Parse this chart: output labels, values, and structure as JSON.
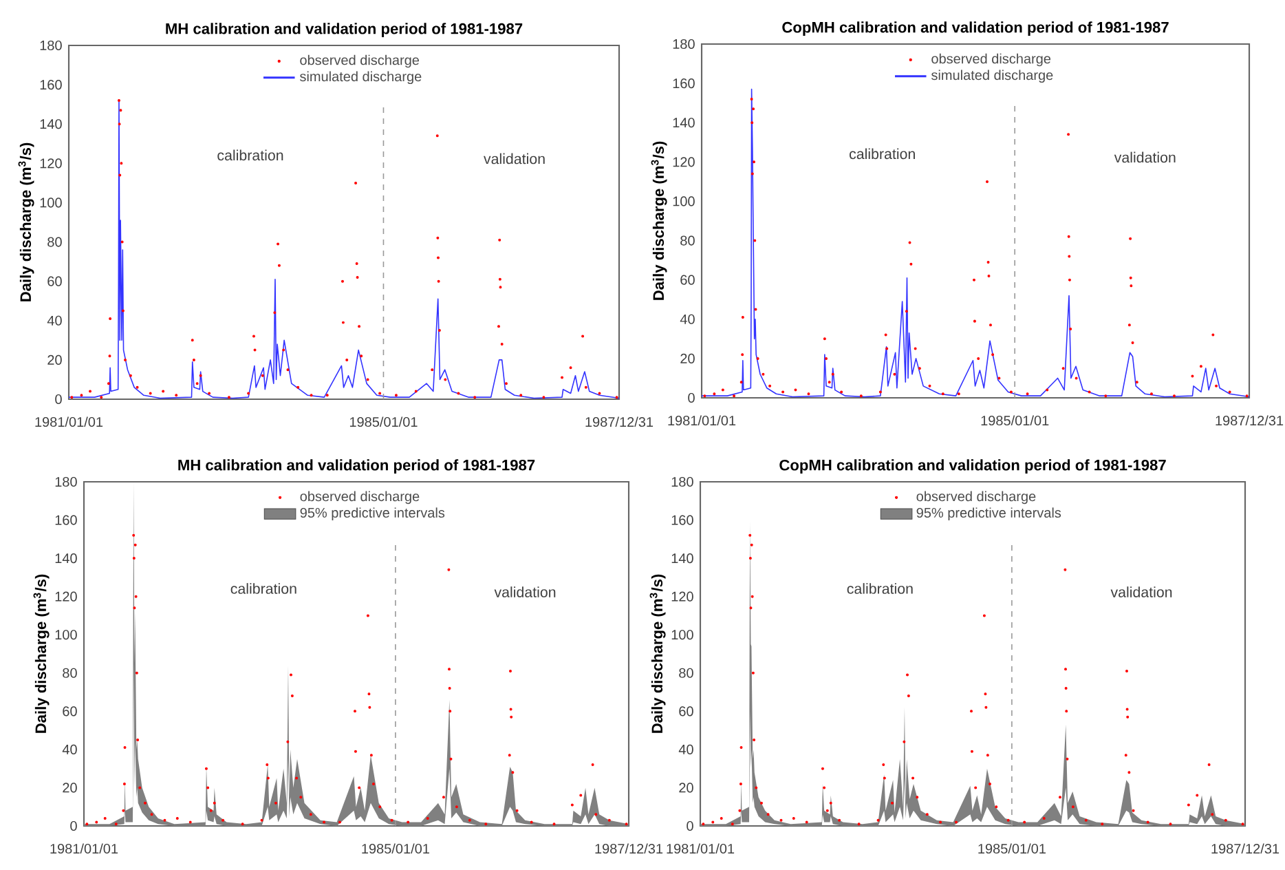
{
  "chart_data": [
    {
      "type": "line",
      "title": "MH calibration and validation period of 1981-1987",
      "ylabel": "Daily discharge (m$^{3}$/s)",
      "xlim": [
        "1981-01-01",
        "1987-12-31"
      ],
      "ylim": [
        0,
        180
      ],
      "xticks": [
        {
          "value": "1981-01-01",
          "label": "1981/01/01"
        },
        {
          "value": "1985-01-01",
          "label": "1985/01/01"
        },
        {
          "value": "1987-12-31",
          "label": "1987/12/31"
        }
      ],
      "yticks": [
        0,
        20,
        40,
        60,
        80,
        100,
        120,
        140,
        160,
        180
      ],
      "legend": "top",
      "ref_lines": [
        {
          "axis": "x",
          "value": "1985-01-01",
          "color": "#999999",
          "line_style": "dashed"
        }
      ],
      "annotations": [
        "calibration",
        "validation"
      ],
      "series": [
        {
          "name": "observed discharge",
          "type": "scatter",
          "color": "#ff0000",
          "x": [
            "1981-01-15",
            "1981-03-01",
            "1981-04-10",
            "1981-06-01",
            "1981-07-05",
            "1981-07-10",
            "1981-07-12",
            "1981-08-22",
            "1981-08-24",
            "1981-08-26",
            "1981-08-30",
            "1981-09-02",
            "1981-09-06",
            "1981-09-10",
            "1981-09-20",
            "1981-10-15",
            "1981-11-15",
            "1982-01-15",
            "1982-03-15",
            "1982-05-15",
            "1982-07-29",
            "1982-08-05",
            "1982-08-20",
            "1982-09-05",
            "1982-10-15",
            "1983-01-15",
            "1983-04-15",
            "1983-05-10",
            "1983-05-15",
            "1983-06-20",
            "1983-08-15",
            "1983-08-30",
            "1983-09-05",
            "1983-09-25",
            "1983-10-15",
            "1983-12-01",
            "1984-02-01",
            "1984-04-15",
            "1984-06-25",
            "1984-06-28",
            "1984-07-15",
            "1984-08-25",
            "1984-08-30",
            "1984-09-02",
            "1984-09-10",
            "1984-09-20",
            "1984-10-20",
            "1984-12-15",
            "1985-03-01",
            "1985-06-01",
            "1985-08-15",
            "1985-09-08",
            "1985-09-10",
            "1985-09-12",
            "1985-09-14",
            "1985-09-18",
            "1985-10-15",
            "1985-12-15",
            "1986-03-01",
            "1986-06-20",
            "1986-06-24",
            "1986-06-26",
            "1986-06-28",
            "1986-07-05",
            "1986-07-25",
            "1986-10-01",
            "1987-01-15",
            "1987-04-10",
            "1987-05-20",
            "1987-07-15",
            "1987-07-30",
            "1987-10-01",
            "1987-12-20"
          ],
          "values": [
            1,
            2,
            4,
            1,
            8,
            22,
            41,
            152,
            140,
            114,
            147,
            120,
            80,
            45,
            20,
            12,
            6,
            3,
            4,
            2,
            30,
            20,
            8,
            12,
            3,
            1,
            3,
            32,
            25,
            12,
            44,
            79,
            68,
            25,
            15,
            6,
            2,
            2,
            60,
            39,
            20,
            110,
            69,
            62,
            37,
            22,
            10,
            3,
            2,
            4,
            15,
            134,
            82,
            72,
            60,
            35,
            10,
            3,
            1,
            37,
            81,
            61,
            57,
            28,
            8,
            2,
            1,
            11,
            16,
            32,
            6,
            3,
            1
          ]
        },
        {
          "name": "simulated discharge",
          "color": "#3333ff",
          "x": [
            "1981-01-01",
            "1981-05-01",
            "1981-07-09",
            "1981-07-12",
            "1981-07-15",
            "1981-08-18",
            "1981-08-20",
            "1981-08-22",
            "1981-08-26",
            "1981-08-29",
            "1981-09-04",
            "1981-09-08",
            "1981-09-12",
            "1981-10-01",
            "1981-11-01",
            "1981-12-15",
            "1982-03-01",
            "1982-07-25",
            "1982-07-29",
            "1982-08-05",
            "1982-09-01",
            "1982-09-05",
            "1982-09-15",
            "1982-11-01",
            "1983-02-01",
            "1983-04-15",
            "1983-05-13",
            "1983-05-20",
            "1983-06-24",
            "1983-07-01",
            "1983-07-26",
            "1983-08-10",
            "1983-08-17",
            "1983-08-22",
            "1983-08-27",
            "1983-09-10",
            "1983-09-28",
            "1983-11-01",
            "1984-01-15",
            "1984-04-01",
            "1984-06-20",
            "1984-06-30",
            "1984-07-22",
            "1984-08-10",
            "1984-09-07",
            "1984-10-15",
            "1984-12-01",
            "1985-02-01",
            "1985-05-01",
            "1985-07-20",
            "1985-08-20",
            "1985-09-11",
            "1985-09-20",
            "1985-10-13",
            "1985-11-15",
            "1986-02-01",
            "1986-05-15",
            "1986-06-22",
            "1986-07-05",
            "1986-07-20",
            "1986-09-01",
            "1986-12-01",
            "1987-04-10",
            "1987-04-15",
            "1987-05-20",
            "1987-06-11",
            "1987-06-25",
            "1987-07-24",
            "1987-08-15",
            "1987-10-01",
            "1987-12-31"
          ],
          "values": [
            1,
            1,
            3,
            16,
            4,
            5,
            60,
            152,
            30,
            91,
            30,
            76,
            25,
            15,
            6,
            2,
            0.5,
            1,
            19,
            6,
            5,
            14,
            4,
            1,
            0.5,
            1,
            17,
            6,
            16,
            5,
            20,
            8,
            61,
            10,
            28,
            12,
            30,
            8,
            2,
            1,
            17,
            6,
            12,
            6,
            25,
            8,
            2,
            1,
            1,
            8,
            4,
            51,
            10,
            15,
            4,
            1,
            1,
            20,
            20,
            5,
            2,
            0.5,
            1,
            5,
            3,
            12,
            4,
            14,
            4,
            2,
            0.5
          ]
        }
      ]
    },
    {
      "type": "line",
      "title": "CopMH calibration and validation period of 1981-1987",
      "ylabel": "Daily discharge (m$^{3}$/s)",
      "xlim": [
        "1981-01-01",
        "1987-12-31"
      ],
      "ylim": [
        0,
        180
      ],
      "xticks": [
        {
          "value": "1981-01-01",
          "label": "1981/01/01"
        },
        {
          "value": "1985-01-01",
          "label": "1985/01/01"
        },
        {
          "value": "1987-12-31",
          "label": "1987/12/31"
        }
      ],
      "yticks": [
        0,
        20,
        40,
        60,
        80,
        100,
        120,
        140,
        160,
        180
      ],
      "legend": "top",
      "ref_lines": [
        {
          "axis": "x",
          "value": "1985-01-01",
          "color": "#999999",
          "line_style": "dashed"
        }
      ],
      "annotations": [
        "calibration",
        "validation"
      ],
      "series": [
        {
          "name": "observed discharge",
          "type": "scatter",
          "color": "#ff0000",
          "x": [
            "1981-01-15",
            "1981-03-01",
            "1981-04-10",
            "1981-06-01",
            "1981-07-05",
            "1981-07-10",
            "1981-07-12",
            "1981-08-22",
            "1981-08-24",
            "1981-08-26",
            "1981-08-30",
            "1981-09-02",
            "1981-09-06",
            "1981-09-10",
            "1981-09-20",
            "1981-10-15",
            "1981-11-15",
            "1982-01-15",
            "1982-03-15",
            "1982-05-15",
            "1982-07-29",
            "1982-08-05",
            "1982-08-20",
            "1982-09-05",
            "1982-10-15",
            "1983-01-15",
            "1983-04-15",
            "1983-05-10",
            "1983-05-15",
            "1983-06-20",
            "1983-08-15",
            "1983-08-30",
            "1983-09-05",
            "1983-09-25",
            "1983-10-15",
            "1983-12-01",
            "1984-02-01",
            "1984-04-15",
            "1984-06-25",
            "1984-06-28",
            "1984-07-15",
            "1984-08-25",
            "1984-08-30",
            "1984-09-02",
            "1984-09-10",
            "1984-09-20",
            "1984-10-20",
            "1984-12-15",
            "1985-03-01",
            "1985-06-01",
            "1985-08-15",
            "1985-09-08",
            "1985-09-10",
            "1985-09-12",
            "1985-09-14",
            "1985-09-18",
            "1985-10-15",
            "1985-12-15",
            "1986-03-01",
            "1986-06-20",
            "1986-06-24",
            "1986-06-26",
            "1986-06-28",
            "1986-07-05",
            "1986-07-25",
            "1986-10-01",
            "1987-01-15",
            "1987-04-10",
            "1987-05-20",
            "1987-07-15",
            "1987-07-30",
            "1987-10-01",
            "1987-12-20"
          ],
          "values": [
            1,
            2,
            4,
            1,
            8,
            22,
            41,
            152,
            140,
            114,
            147,
            120,
            80,
            45,
            20,
            12,
            6,
            3,
            4,
            2,
            30,
            20,
            8,
            12,
            3,
            1,
            3,
            32,
            25,
            12,
            44,
            79,
            68,
            25,
            15,
            6,
            2,
            2,
            60,
            39,
            20,
            110,
            69,
            62,
            37,
            22,
            10,
            3,
            2,
            4,
            15,
            134,
            82,
            72,
            60,
            35,
            10,
            3,
            1,
            37,
            81,
            61,
            57,
            28,
            8,
            2,
            1,
            11,
            16,
            32,
            6,
            3,
            1
          ]
        },
        {
          "name": "simulated discharge",
          "color": "#3333ff",
          "x": [
            "1981-01-01",
            "1981-05-01",
            "1981-07-09",
            "1981-07-12",
            "1981-07-15",
            "1981-08-18",
            "1981-08-20",
            "1981-08-22",
            "1981-08-26",
            "1981-08-29",
            "1981-09-04",
            "1981-09-08",
            "1981-09-12",
            "1981-10-01",
            "1981-11-01",
            "1981-12-15",
            "1982-03-01",
            "1982-07-25",
            "1982-07-29",
            "1982-08-05",
            "1982-09-01",
            "1982-09-05",
            "1982-09-15",
            "1982-11-01",
            "1983-02-01",
            "1983-04-15",
            "1983-05-13",
            "1983-05-20",
            "1983-06-24",
            "1983-07-01",
            "1983-07-26",
            "1983-08-10",
            "1983-08-17",
            "1983-08-22",
            "1983-08-27",
            "1983-09-10",
            "1983-09-28",
            "1983-11-01",
            "1984-01-15",
            "1984-04-01",
            "1984-06-20",
            "1984-06-30",
            "1984-07-22",
            "1984-08-10",
            "1984-09-07",
            "1984-10-15",
            "1984-12-01",
            "1985-02-01",
            "1985-05-01",
            "1985-07-20",
            "1985-08-20",
            "1985-09-11",
            "1985-09-20",
            "1985-10-13",
            "1985-11-15",
            "1986-02-01",
            "1986-05-15",
            "1986-06-22",
            "1986-07-05",
            "1986-07-20",
            "1986-09-01",
            "1986-12-01",
            "1987-04-10",
            "1987-04-15",
            "1987-05-20",
            "1987-06-11",
            "1987-06-25",
            "1987-07-24",
            "1987-08-15",
            "1987-10-01",
            "1987-12-31"
          ],
          "values": [
            1,
            1,
            3,
            19,
            4,
            5,
            50,
            157,
            126,
            92,
            30,
            40,
            22,
            12,
            5,
            2,
            0.5,
            1,
            22,
            6,
            5,
            15,
            4,
            1,
            0.5,
            1,
            26,
            6,
            23,
            5,
            49,
            8,
            61,
            10,
            33,
            12,
            20,
            6,
            2,
            1,
            19,
            6,
            14,
            5,
            29,
            9,
            3,
            1,
            1,
            10,
            4,
            52,
            10,
            16,
            4,
            1,
            1,
            23,
            21,
            6,
            2,
            0.5,
            1,
            6,
            3,
            15,
            4,
            15,
            5,
            2,
            0.5
          ]
        }
      ]
    },
    {
      "type": "line",
      "title": "MH calibration and validation period of 1981-1987",
      "ylabel": "Daily discharge (m$^{3}$/s)",
      "xlim": [
        "1981-01-01",
        "1987-12-31"
      ],
      "ylim": [
        0,
        180
      ],
      "xticks": [
        {
          "value": "1981-01-01",
          "label": "1981/01/01"
        },
        {
          "value": "1985-01-01",
          "label": "1985/01/01"
        },
        {
          "value": "1987-12-31",
          "label": "1987/12/31"
        }
      ],
      "yticks": [
        0,
        20,
        40,
        60,
        80,
        100,
        120,
        140,
        160,
        180
      ],
      "legend": "top",
      "ref_lines": [
        {
          "axis": "x",
          "value": "1985-01-01",
          "color": "#999999",
          "line_style": "dashed"
        }
      ],
      "annotations": [
        "calibration",
        "validation"
      ],
      "series": [
        {
          "name": "observed discharge",
          "type": "scatter",
          "color": "#ff0000",
          "x": [
            "1981-01-15",
            "1981-03-01",
            "1981-04-10",
            "1981-06-01",
            "1981-07-05",
            "1981-07-10",
            "1981-07-12",
            "1981-08-22",
            "1981-08-24",
            "1981-08-26",
            "1981-08-30",
            "1981-09-02",
            "1981-09-06",
            "1981-09-10",
            "1981-09-20",
            "1981-10-15",
            "1981-11-15",
            "1982-01-15",
            "1982-03-15",
            "1982-05-15",
            "1982-07-29",
            "1982-08-05",
            "1982-08-20",
            "1982-09-05",
            "1982-10-15",
            "1983-01-15",
            "1983-04-15",
            "1983-05-10",
            "1983-05-15",
            "1983-06-20",
            "1983-08-15",
            "1983-08-30",
            "1983-09-05",
            "1983-09-25",
            "1983-10-15",
            "1983-12-01",
            "1984-02-01",
            "1984-04-15",
            "1984-06-25",
            "1984-06-28",
            "1984-07-15",
            "1984-08-25",
            "1984-08-30",
            "1984-09-02",
            "1984-09-10",
            "1984-09-20",
            "1984-10-20",
            "1984-12-15",
            "1985-03-01",
            "1985-06-01",
            "1985-08-15",
            "1985-09-08",
            "1985-09-10",
            "1985-09-12",
            "1985-09-14",
            "1985-09-18",
            "1985-10-15",
            "1985-12-15",
            "1986-03-01",
            "1986-06-20",
            "1986-06-24",
            "1986-06-26",
            "1986-06-28",
            "1986-07-05",
            "1986-07-25",
            "1986-10-01",
            "1987-01-15",
            "1987-04-10",
            "1987-05-20",
            "1987-07-15",
            "1987-07-30",
            "1987-10-01",
            "1987-12-20"
          ],
          "values": [
            1,
            2,
            4,
            1,
            8,
            22,
            41,
            152,
            140,
            114,
            147,
            120,
            80,
            45,
            20,
            12,
            6,
            3,
            4,
            2,
            30,
            20,
            8,
            12,
            3,
            1,
            3,
            32,
            25,
            12,
            44,
            79,
            68,
            25,
            15,
            6,
            2,
            2,
            60,
            39,
            20,
            110,
            69,
            62,
            37,
            22,
            10,
            3,
            2,
            4,
            15,
            134,
            82,
            72,
            60,
            35,
            10,
            3,
            1,
            37,
            81,
            61,
            57,
            28,
            8,
            2,
            1,
            11,
            16,
            32,
            6,
            3,
            1
          ]
        },
        {
          "name": "95% predictive intervals",
          "color": "#808080",
          "x": [
            "1981-01-01",
            "1981-05-01",
            "1981-07-09",
            "1981-07-12",
            "1981-07-15",
            "1981-08-18",
            "1981-08-20",
            "1981-08-22",
            "1981-08-26",
            "1981-08-29",
            "1981-09-04",
            "1981-09-08",
            "1981-09-12",
            "1981-10-01",
            "1981-11-01",
            "1981-12-15",
            "1982-03-01",
            "1982-07-25",
            "1982-07-29",
            "1982-08-05",
            "1982-09-01",
            "1982-09-05",
            "1982-09-15",
            "1982-11-01",
            "1983-02-01",
            "1983-04-15",
            "1983-05-13",
            "1983-05-20",
            "1983-06-24",
            "1983-07-01",
            "1983-07-26",
            "1983-08-10",
            "1983-08-17",
            "1983-08-22",
            "1983-08-27",
            "1983-09-10",
            "1983-09-28",
            "1983-11-01",
            "1984-01-15",
            "1984-04-01",
            "1984-06-20",
            "1984-06-30",
            "1984-07-22",
            "1984-08-10",
            "1984-09-07",
            "1984-10-15",
            "1984-12-01",
            "1985-02-01",
            "1985-05-01",
            "1985-07-20",
            "1985-08-20",
            "1985-09-11",
            "1985-09-20",
            "1985-10-13",
            "1985-11-15",
            "1986-02-01",
            "1986-05-15",
            "1986-06-22",
            "1986-07-05",
            "1986-07-20",
            "1986-09-01",
            "1986-12-01",
            "1987-04-10",
            "1987-04-15",
            "1987-05-20",
            "1987-06-11",
            "1987-06-25",
            "1987-07-24",
            "1987-08-15",
            "1987-10-01",
            "1987-12-31"
          ],
          "values": [
            null,
            null,
            null,
            null,
            null,
            null,
            null,
            null,
            null,
            null,
            null,
            null,
            null,
            null,
            null,
            null,
            null,
            null,
            null,
            null,
            null,
            null,
            null,
            null,
            null,
            null,
            null,
            null,
            null,
            null,
            null,
            null,
            null,
            null,
            null,
            null,
            null,
            null,
            null,
            null,
            null,
            null,
            null,
            null,
            null,
            null,
            null,
            null,
            null,
            null,
            null,
            null,
            null,
            null,
            null,
            null,
            null,
            null,
            null,
            null,
            null,
            null,
            null,
            null,
            null,
            null,
            null,
            null,
            null,
            null,
            null
          ],
          "upper": [
            1,
            1,
            5,
            24,
            8,
            10,
            110,
            180,
            85,
            112,
            40,
            45,
            35,
            20,
            10,
            4,
            1,
            2,
            31,
            10,
            8,
            20,
            6,
            2,
            1,
            2,
            32,
            10,
            25,
            8,
            30,
            12,
            84,
            15,
            40,
            20,
            35,
            12,
            3,
            2,
            26,
            10,
            20,
            8,
            37,
            12,
            4,
            2,
            2,
            12,
            6,
            66,
            15,
            22,
            6,
            2,
            1,
            31,
            28,
            8,
            3,
            1,
            1,
            8,
            5,
            20,
            6,
            20,
            6,
            3,
            1
          ],
          "lower": [
            0,
            0,
            1,
            8,
            2,
            2,
            30,
            85,
            20,
            45,
            15,
            20,
            12,
            7,
            3,
            1,
            0,
            0,
            8,
            3,
            2,
            5,
            1,
            0,
            0,
            0,
            10,
            3,
            6,
            2,
            8,
            4,
            35,
            5,
            15,
            6,
            12,
            4,
            1,
            0,
            8,
            3,
            5,
            2,
            12,
            4,
            1,
            0,
            0,
            3,
            1,
            30,
            4,
            7,
            2,
            0,
            0,
            10,
            8,
            2,
            1,
            0,
            0,
            2,
            1,
            6,
            1,
            6,
            1,
            0,
            0
          ]
        }
      ]
    },
    {
      "type": "line",
      "title": "CopMH calibration and validation period of 1981-1987",
      "ylabel": "Daily discharge (m$^{3}$/s)",
      "xlim": [
        "1981-01-01",
        "1987-12-31"
      ],
      "ylim": [
        0,
        180
      ],
      "xticks": [
        {
          "value": "1981-01-01",
          "label": "1981/01/01"
        },
        {
          "value": "1985-01-01",
          "label": "1985/01/01"
        },
        {
          "value": "1987-12-31",
          "label": "1987/12/31"
        }
      ],
      "yticks": [
        0,
        20,
        40,
        60,
        80,
        100,
        120,
        140,
        160,
        180
      ],
      "legend": "top",
      "ref_lines": [
        {
          "axis": "x",
          "value": "1985-01-01",
          "color": "#999999",
          "line_style": "dashed"
        }
      ],
      "annotations": [
        "calibration",
        "validation"
      ],
      "series": [
        {
          "name": "observed discharge",
          "type": "scatter",
          "color": "#ff0000",
          "x": [
            "1981-01-15",
            "1981-03-01",
            "1981-04-10",
            "1981-06-01",
            "1981-07-05",
            "1981-07-10",
            "1981-07-12",
            "1981-08-22",
            "1981-08-24",
            "1981-08-26",
            "1981-08-30",
            "1981-09-02",
            "1981-09-06",
            "1981-09-10",
            "1981-09-20",
            "1981-10-15",
            "1981-11-15",
            "1982-01-15",
            "1982-03-15",
            "1982-05-15",
            "1982-07-29",
            "1982-08-05",
            "1982-08-20",
            "1982-09-05",
            "1982-10-15",
            "1983-01-15",
            "1983-04-15",
            "1983-05-10",
            "1983-05-15",
            "1983-06-20",
            "1983-08-15",
            "1983-08-30",
            "1983-09-05",
            "1983-09-25",
            "1983-10-15",
            "1983-12-01",
            "1984-02-01",
            "1984-04-15",
            "1984-06-25",
            "1984-06-28",
            "1984-07-15",
            "1984-08-25",
            "1984-08-30",
            "1984-09-02",
            "1984-09-10",
            "1984-09-20",
            "1984-10-20",
            "1984-12-15",
            "1985-03-01",
            "1985-06-01",
            "1985-08-15",
            "1985-09-08",
            "1985-09-10",
            "1985-09-12",
            "1985-09-14",
            "1985-09-18",
            "1985-10-15",
            "1985-12-15",
            "1986-03-01",
            "1986-06-20",
            "1986-06-24",
            "1986-06-26",
            "1986-06-28",
            "1986-07-05",
            "1986-07-25",
            "1986-10-01",
            "1987-01-15",
            "1987-04-10",
            "1987-05-20",
            "1987-07-15",
            "1987-07-30",
            "1987-10-01",
            "1987-12-20"
          ],
          "values": [
            1,
            2,
            4,
            1,
            8,
            22,
            41,
            152,
            140,
            114,
            147,
            120,
            80,
            45,
            20,
            12,
            6,
            3,
            4,
            2,
            30,
            20,
            8,
            12,
            3,
            1,
            3,
            32,
            25,
            12,
            44,
            79,
            68,
            25,
            15,
            6,
            2,
            2,
            60,
            39,
            20,
            110,
            69,
            62,
            37,
            22,
            10,
            3,
            2,
            4,
            15,
            134,
            82,
            72,
            60,
            35,
            10,
            3,
            1,
            37,
            81,
            61,
            57,
            28,
            8,
            2,
            1,
            11,
            16,
            32,
            6,
            3,
            1
          ]
        },
        {
          "name": "95% predictive intervals",
          "color": "#808080",
          "x": [
            "1981-01-01",
            "1981-05-01",
            "1981-07-09",
            "1981-07-12",
            "1981-07-15",
            "1981-08-18",
            "1981-08-20",
            "1981-08-22",
            "1981-08-26",
            "1981-08-29",
            "1981-09-04",
            "1981-09-08",
            "1981-09-12",
            "1981-10-01",
            "1981-11-01",
            "1981-12-15",
            "1982-03-01",
            "1982-07-25",
            "1982-07-29",
            "1982-08-05",
            "1982-09-01",
            "1982-09-05",
            "1982-09-15",
            "1982-11-01",
            "1983-02-01",
            "1983-04-15",
            "1983-05-13",
            "1983-05-20",
            "1983-06-24",
            "1983-07-01",
            "1983-07-26",
            "1983-08-10",
            "1983-08-17",
            "1983-08-22",
            "1983-08-27",
            "1983-09-10",
            "1983-09-28",
            "1983-11-01",
            "1984-01-15",
            "1984-04-01",
            "1984-06-20",
            "1984-06-30",
            "1984-07-22",
            "1984-08-10",
            "1984-09-07",
            "1984-10-15",
            "1984-12-01",
            "1985-02-01",
            "1985-05-01",
            "1985-07-20",
            "1985-08-20",
            "1985-09-11",
            "1985-09-20",
            "1985-10-13",
            "1985-11-15",
            "1986-02-01",
            "1986-05-15",
            "1986-06-22",
            "1986-07-05",
            "1986-07-20",
            "1986-09-01",
            "1986-12-01",
            "1987-04-10",
            "1987-04-15",
            "1987-05-20",
            "1987-06-11",
            "1987-06-25",
            "1987-07-24",
            "1987-08-15",
            "1987-10-01",
            "1987-12-31"
          ],
          "values": [
            null,
            null,
            null,
            null,
            null,
            null,
            null,
            null,
            null,
            null,
            null,
            null,
            null,
            null,
            null,
            null,
            null,
            null,
            null,
            null,
            null,
            null,
            null,
            null,
            null,
            null,
            null,
            null,
            null,
            null,
            null,
            null,
            null,
            null,
            null,
            null,
            null,
            null,
            null,
            null,
            null,
            null,
            null,
            null,
            null,
            null,
            null,
            null,
            null,
            null,
            null,
            null,
            null,
            null,
            null,
            null,
            null,
            null,
            null,
            null,
            null,
            null,
            null,
            null,
            null,
            null,
            null,
            null,
            null,
            null,
            null
          ],
          "upper": [
            1,
            1,
            5,
            23,
            8,
            10,
            95,
            159,
            95,
            94,
            35,
            40,
            28,
            15,
            8,
            3,
            1,
            2,
            22,
            8,
            6,
            16,
            5,
            2,
            1,
            2,
            27,
            8,
            24,
            7,
            35,
            10,
            62,
            12,
            35,
            14,
            22,
            8,
            3,
            2,
            21,
            8,
            16,
            6,
            30,
            10,
            4,
            2,
            2,
            12,
            5,
            53,
            12,
            18,
            5,
            2,
            1,
            24,
            22,
            7,
            3,
            1,
            1,
            6,
            4,
            16,
            5,
            16,
            5,
            3,
            1
          ],
          "lower": [
            0,
            0,
            1,
            8,
            2,
            2,
            25,
            60,
            30,
            40,
            12,
            15,
            10,
            5,
            2,
            1,
            0,
            0,
            6,
            2,
            2,
            5,
            1,
            0,
            0,
            0,
            8,
            2,
            6,
            2,
            10,
            3,
            25,
            4,
            12,
            4,
            8,
            3,
            1,
            0,
            6,
            2,
            4,
            2,
            10,
            3,
            1,
            0,
            0,
            3,
            1,
            20,
            3,
            6,
            1,
            0,
            0,
            8,
            7,
            2,
            1,
            0,
            0,
            2,
            1,
            5,
            1,
            5,
            1,
            0,
            0
          ]
        }
      ]
    }
  ]
}
